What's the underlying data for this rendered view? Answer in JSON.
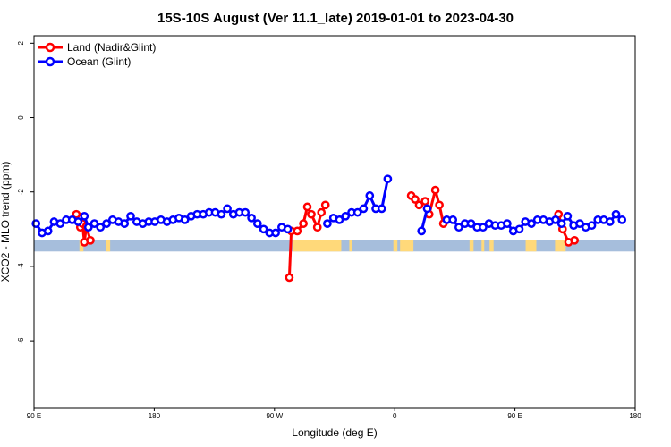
{
  "chart_data": {
    "type": "line",
    "title": "15S-10S August (Ver 11.1_late)   2019-01-01 to 2023-04-30",
    "xlabel": "Longitude (deg E)",
    "ylabel": "XCO2 - MLO trend (ppm)",
    "xlim": [
      90,
      540
    ],
    "ylim": [
      -7.8,
      2.2
    ],
    "xticks": [
      {
        "value": 90,
        "label": "90 E"
      },
      {
        "value": 180,
        "label": "180"
      },
      {
        "value": 270,
        "label": "90 W"
      },
      {
        "value": 360,
        "label": "0"
      },
      {
        "value": 450,
        "label": "90 E"
      },
      {
        "value": 540,
        "label": "180"
      }
    ],
    "yticks": [
      {
        "value": 2,
        "label": "2"
      },
      {
        "value": 0,
        "label": "0"
      },
      {
        "value": -2,
        "label": "-2"
      },
      {
        "value": -4,
        "label": "-4"
      },
      {
        "value": -6,
        "label": "-6"
      }
    ],
    "legend": {
      "position": "top-left",
      "entries": [
        {
          "name": "Land (Nadir&Glint)",
          "color": "#ff0000"
        },
        {
          "name": "Ocean (Glint)",
          "color": "#0000ff"
        }
      ]
    },
    "landmask": {
      "y_range": [
        -3.6,
        -3.3
      ],
      "ocean_color": "#a6bedc",
      "land_color": "#ffd97a",
      "land_segments": [
        [
          124,
          127
        ],
        [
          144,
          147
        ],
        [
          284,
          320
        ],
        [
          326,
          328
        ],
        [
          359,
          362
        ],
        [
          364,
          374
        ],
        [
          416,
          419
        ],
        [
          425,
          427
        ],
        [
          431,
          434
        ],
        [
          458,
          466
        ],
        [
          480,
          488
        ]
      ]
    },
    "series": [
      {
        "name": "Land (Nadir&Glint)",
        "color": "#ff0000",
        "segments": [
          [
            [
              121.7,
              -2.6
            ],
            [
              124.7,
              -2.95
            ],
            [
              126.2,
              -2.85
            ],
            [
              127.7,
              -3.35
            ],
            [
              129.2,
              -2.92
            ],
            [
              132.2,
              -3.3
            ]
          ],
          [
            [
              281.1,
              -4.3
            ],
            [
              282.6,
              -3.05
            ],
            [
              287.1,
              -3.05
            ],
            [
              291.6,
              -2.85
            ],
            [
              294.6,
              -2.4
            ],
            [
              297.6,
              -2.6
            ],
            [
              302.1,
              -2.95
            ],
            [
              305.1,
              -2.55
            ],
            [
              308.1,
              -2.35
            ]
          ],
          [
            [
              372.3,
              -2.1
            ],
            [
              375.3,
              -2.2
            ],
            [
              378.3,
              -2.35
            ],
            [
              382.8,
              -2.25
            ],
            [
              385.8,
              -2.6
            ],
            [
              390.4,
              -1.95
            ],
            [
              393.4,
              -2.35
            ],
            [
              396.4,
              -2.85
            ]
          ],
          [
            [
              482.6,
              -2.6
            ],
            [
              485.6,
              -3.0
            ],
            [
              490.1,
              -3.35
            ],
            [
              494.6,
              -3.3
            ]
          ]
        ]
      },
      {
        "name": "Ocean (Glint)",
        "color": "#0000ff",
        "segments": [
          [
            [
              91.5,
              -2.85
            ],
            [
              96.0,
              -3.1
            ],
            [
              100.5,
              -3.05
            ],
            [
              105.0,
              -2.8
            ],
            [
              109.6,
              -2.85
            ],
            [
              114.1,
              -2.75
            ],
            [
              118.6,
              -2.75
            ],
            [
              123.1,
              -2.8
            ],
            [
              127.7,
              -2.65
            ],
            [
              130.7,
              -2.95
            ],
            [
              135.2,
              -2.85
            ],
            [
              139.7,
              -2.95
            ],
            [
              144.3,
              -2.85
            ],
            [
              148.8,
              -2.75
            ],
            [
              153.3,
              -2.8
            ],
            [
              157.8,
              -2.85
            ],
            [
              162.3,
              -2.65
            ],
            [
              166.9,
              -2.8
            ],
            [
              171.4,
              -2.85
            ],
            [
              175.9,
              -2.8
            ],
            [
              180.4,
              -2.8
            ],
            [
              185.0,
              -2.75
            ],
            [
              189.5,
              -2.8
            ],
            [
              194.0,
              -2.75
            ],
            [
              198.5,
              -2.7
            ],
            [
              203.0,
              -2.75
            ],
            [
              207.6,
              -2.65
            ],
            [
              212.1,
              -2.6
            ],
            [
              216.6,
              -2.6
            ],
            [
              221.1,
              -2.55
            ],
            [
              225.6,
              -2.55
            ],
            [
              230.2,
              -2.6
            ],
            [
              234.7,
              -2.45
            ],
            [
              239.2,
              -2.6
            ],
            [
              243.7,
              -2.55
            ],
            [
              248.2,
              -2.55
            ],
            [
              252.8,
              -2.7
            ],
            [
              257.3,
              -2.85
            ],
            [
              261.8,
              -3.0
            ],
            [
              266.3,
              -3.1
            ],
            [
              270.9,
              -3.1
            ],
            [
              275.4,
              -2.95
            ],
            [
              279.9,
              -3.0
            ]
          ],
          [
            [
              309.6,
              -2.85
            ],
            [
              314.1,
              -2.7
            ],
            [
              318.6,
              -2.75
            ],
            [
              323.2,
              -2.65
            ],
            [
              327.7,
              -2.55
            ],
            [
              332.2,
              -2.55
            ],
            [
              336.7,
              -2.45
            ],
            [
              341.3,
              -2.1
            ],
            [
              345.8,
              -2.45
            ],
            [
              350.3,
              -2.45
            ],
            [
              354.8,
              -1.65
            ]
          ],
          [
            [
              380.1,
              -3.05
            ],
            [
              384.3,
              -2.45
            ]
          ],
          [
            [
              399.0,
              -2.75
            ],
            [
              403.5,
              -2.75
            ],
            [
              408.0,
              -2.95
            ],
            [
              412.6,
              -2.85
            ],
            [
              417.1,
              -2.85
            ],
            [
              421.6,
              -2.95
            ],
            [
              426.1,
              -2.95
            ],
            [
              430.6,
              -2.85
            ],
            [
              435.2,
              -2.9
            ],
            [
              439.7,
              -2.9
            ],
            [
              444.2,
              -2.85
            ],
            [
              448.7,
              -3.05
            ],
            [
              453.3,
              -3.0
            ],
            [
              457.8,
              -2.8
            ],
            [
              462.3,
              -2.85
            ],
            [
              466.8,
              -2.75
            ],
            [
              471.3,
              -2.75
            ],
            [
              475.9,
              -2.8
            ],
            [
              480.4,
              -2.75
            ],
            [
              484.9,
              -2.85
            ],
            [
              489.4,
              -2.65
            ],
            [
              493.9,
              -2.9
            ],
            [
              498.5,
              -2.85
            ],
            [
              503.0,
              -2.95
            ],
            [
              507.5,
              -2.9
            ],
            [
              512.0,
              -2.75
            ],
            [
              516.5,
              -2.75
            ],
            [
              521.1,
              -2.8
            ],
            [
              525.6,
              -2.6
            ],
            [
              530.1,
              -2.75
            ]
          ]
        ]
      }
    ]
  }
}
